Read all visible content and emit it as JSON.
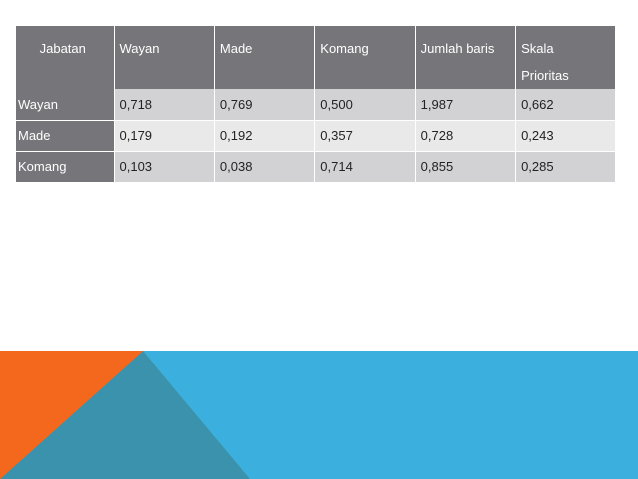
{
  "table": {
    "headers": [
      "Jabatan",
      "Wayan",
      "Made",
      "Komang",
      "Jumlah baris",
      "Skala Prioritas"
    ],
    "header_last_line1": "Skala",
    "header_last_line2": "Prioritas",
    "rows": [
      {
        "label": "Wayan",
        "values": [
          "0,718",
          "0,769",
          "0,500",
          "1,987",
          "0,662"
        ]
      },
      {
        "label": "Made",
        "values": [
          "0,179",
          "0,192",
          "0,357",
          "0,728",
          "0,243"
        ]
      },
      {
        "label": "Komang",
        "values": [
          "0,103",
          "0,038",
          "0,714",
          "0,855",
          "0,285"
        ]
      }
    ]
  },
  "colors": {
    "header_bg": "#76767a",
    "row_band_dark": "#d2d2d4",
    "row_band_light": "#e9e9ea",
    "accent_blue": "#3bb0de",
    "accent_orange": "#f4681e",
    "accent_teal": "#3a92ad"
  }
}
